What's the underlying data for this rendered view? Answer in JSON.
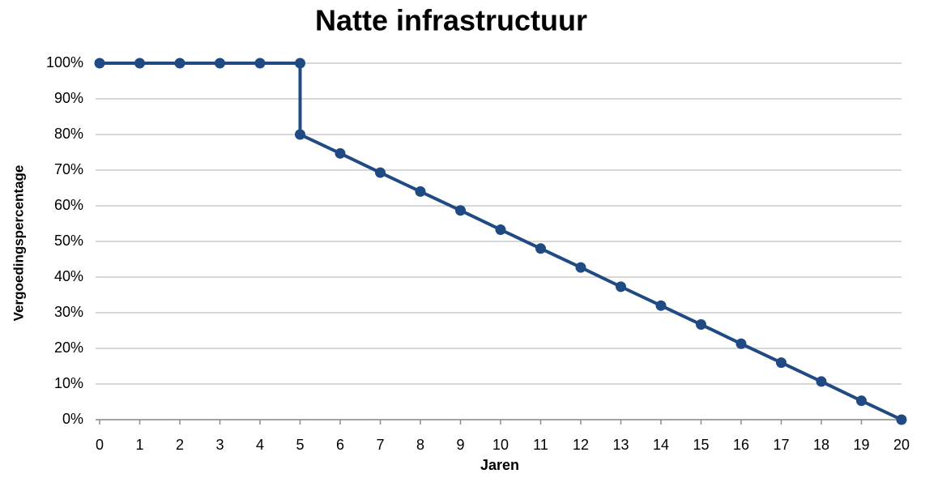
{
  "chart_data": {
    "type": "line",
    "title": "Natte infrastructuur",
    "xlabel": "Jaren",
    "ylabel": "Vergoedingspercentage",
    "x": [
      0,
      1,
      2,
      3,
      4,
      5,
      5,
      6,
      7,
      8,
      9,
      10,
      11,
      12,
      13,
      14,
      15,
      16,
      17,
      18,
      19,
      20
    ],
    "series": [
      {
        "color": "#1f4a84",
        "values": [
          100,
          100,
          100,
          100,
          100,
          100,
          80,
          74.7,
          69.3,
          64,
          58.7,
          53.3,
          48,
          42.7,
          37.3,
          32,
          26.7,
          21.3,
          16,
          10.7,
          5.3,
          0
        ]
      }
    ],
    "xlim": [
      0,
      20
    ],
    "xticks": [
      0,
      1,
      2,
      3,
      4,
      5,
      6,
      7,
      8,
      9,
      10,
      11,
      12,
      13,
      14,
      15,
      16,
      17,
      18,
      19,
      20
    ],
    "ylim": [
      0,
      100
    ],
    "yticks": [
      {
        "value": 0,
        "label": "0%"
      },
      {
        "value": 10,
        "label": "10%"
      },
      {
        "value": 20,
        "label": "20%"
      },
      {
        "value": 30,
        "label": "30%"
      },
      {
        "value": 40,
        "label": "40%"
      },
      {
        "value": 50,
        "label": "50%"
      },
      {
        "value": 60,
        "label": "60%"
      },
      {
        "value": 70,
        "label": "70%"
      },
      {
        "value": 80,
        "label": "80%"
      },
      {
        "value": 90,
        "label": "90%"
      },
      {
        "value": 100,
        "label": "100%"
      }
    ],
    "grid": true
  }
}
